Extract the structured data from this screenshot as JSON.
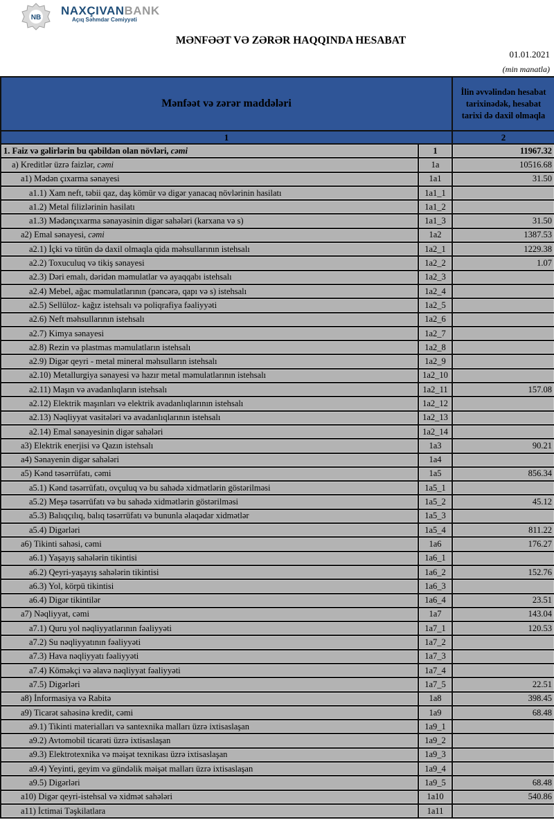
{
  "header": {
    "bank_name_part1": "NAXÇIVAN",
    "bank_name_part2": "BANK",
    "bank_subtitle": "Açıq Səhmdar Cəmiyyəti",
    "logo_text": "NB",
    "title": "MƏNFƏƏT VƏ ZƏRƏR HAQQINDA HESABAT",
    "date": "01.01.2021",
    "unit": "(min manatla)"
  },
  "colors": {
    "header_bg": "#2f5597",
    "row_bg": "#b3b3b3",
    "brand": "#1f4e79"
  },
  "table": {
    "col1_header": "Mənfəət və zərər maddələri",
    "col3_header": "İlin əvvəlindən hesabat tarixinədək, hesabat tarixi də daxil olmaqla",
    "col1_num": "1",
    "col3_num": "2",
    "rows": [
      {
        "level": 0,
        "bold": true,
        "label": "1. Faiz və gəlirlərin bu qəbildən olan növləri, ",
        "italic": "cəmi",
        "code": "1",
        "value": "11967.32"
      },
      {
        "level": 1,
        "label": "a) Kreditlər üzrə faizlər, ",
        "italic": "cəmi",
        "code": "1a",
        "value": "10516.68"
      },
      {
        "level": 2,
        "label": "a1) Mədən çıxarma sənayesi",
        "code": "1a1",
        "value": "31.50"
      },
      {
        "level": 3,
        "label": "a1.1) Xam neft, təbii qaz, daş kömür və digər yanacaq növlərinin hasilatı",
        "code": "1a1_1",
        "value": ""
      },
      {
        "level": 3,
        "label": "a1.2) Metal filizlərinin hasilatı",
        "code": "1a1_2",
        "value": ""
      },
      {
        "level": 3,
        "label": "a1.3) Mədənçıxarma sənayəsinin digər sahələri (karxana və s)",
        "code": "1a1_3",
        "value": "31.50"
      },
      {
        "level": 2,
        "label": "a2) Emal sənayesi, ",
        "italic": "cəmi",
        "code": "1a2",
        "value": "1387.53"
      },
      {
        "level": 3,
        "label": "a2.1) İçki və tütün də daxil olmaqla qida məhsullarının istehsalı",
        "code": "1a2_1",
        "value": "1229.38"
      },
      {
        "level": 3,
        "label": "a2.2) Toxuculuq və tikiş sənayesi",
        "code": "1a2_2",
        "value": "1.07"
      },
      {
        "level": 3,
        "label": "a2.3) Dəri emalı, dəridən məmulatlar və ayaqqabı istehsalı",
        "code": "1a2_3",
        "value": ""
      },
      {
        "level": 3,
        "label": "a2.4) Mebel, ağac məmulatlarının (pəncərə, qapı və s) istehsalı",
        "code": "1a2_4",
        "value": ""
      },
      {
        "level": 3,
        "label": "a2.5) Sellüloz- kağız istehsalı və poliqrafiya fəaliyyəti",
        "code": "1a2_5",
        "value": ""
      },
      {
        "level": 3,
        "label": "a2.6) Neft məhsullarının istehsalı",
        "code": "1a2_6",
        "value": ""
      },
      {
        "level": 3,
        "label": "a2.7) Kimya sənayesi",
        "code": "1a2_7",
        "value": ""
      },
      {
        "level": 3,
        "label": "a2.8) Rezin və plastmas məmulatların istehsalı",
        "code": "1a2_8",
        "value": ""
      },
      {
        "level": 3,
        "label": "a2.9) Digər qeyri - metal mineral məhsulların istehsalı",
        "code": "1a2_9",
        "value": ""
      },
      {
        "level": 3,
        "label": "a2.10) Metallurgiya sənayesi və hazır metal məmulatlarının istehsalı",
        "code": "1a2_10",
        "value": ""
      },
      {
        "level": 3,
        "label": "a2.11) Maşın və avadanlıqların istehsalı",
        "code": "1a2_11",
        "value": "157.08"
      },
      {
        "level": 3,
        "label": "a2.12) Elektrik maşınları və elektrik avadanlıqlarının istehsalı",
        "code": "1a2_12",
        "value": ""
      },
      {
        "level": 3,
        "label": "a2.13) Nəqliyyat vasitələri və avadanlıqlarının istehsalı",
        "code": "1a2_13",
        "value": ""
      },
      {
        "level": 3,
        "label": "a2.14) Emal sənayesinin digər sahələri",
        "code": "1a2_14",
        "value": ""
      },
      {
        "level": 2,
        "label": "a3) Elektrik enerjisi və Qazın istehsalı",
        "code": "1a3",
        "value": "90.21"
      },
      {
        "level": 2,
        "label": "a4) Sənayenin digər sahələri",
        "code": "1a4",
        "value": ""
      },
      {
        "level": 2,
        "label": "a5) Kənd təsərrüfatı, cəmi",
        "code": "1a5",
        "value": "856.34"
      },
      {
        "level": 3,
        "label": "a5.1) Kənd təsərrüfatı, ovçuluq və bu sahədə xidmətlərin göstərilməsi",
        "code": "1a5_1",
        "value": ""
      },
      {
        "level": 3,
        "label": "a5.2) Meşə təsərrüfatı və bu sahədə xidmətlərin göstərilməsi",
        "code": "1a5_2",
        "value": "45.12"
      },
      {
        "level": 3,
        "label": "a5.3) Balıqçılıq, balıq təsərrüfatı və bununla əlaqədar xidmətlər",
        "code": "1a5_3",
        "value": ""
      },
      {
        "level": 3,
        "label": "a5.4) Digərləri",
        "code": "1a5_4",
        "value": "811.22"
      },
      {
        "level": 2,
        "label": "a6) Tikinti sahəsi, cəmi",
        "code": "1a6",
        "value": "176.27"
      },
      {
        "level": 3,
        "label": "a6.1) Yaşayış sahələrin tikintisi",
        "code": "1a6_1",
        "value": ""
      },
      {
        "level": 3,
        "label": "a6.2) Qeyri-yaşayış sahələrin tikintisi",
        "code": "1a6_2",
        "value": "152.76"
      },
      {
        "level": 3,
        "label": "a6.3) Yol, körpü tikintisi",
        "code": "1a6_3",
        "value": ""
      },
      {
        "level": 3,
        "label": "a6.4) Digər tikintilər",
        "code": "1a6_4",
        "value": "23.51"
      },
      {
        "level": 2,
        "label": "a7) Nəqliyyat, cəmi",
        "code": "1a7",
        "value": "143.04"
      },
      {
        "level": 3,
        "label": "a7.1) Quru yol nəqliyyatlarının fəaliyyəti",
        "code": "1a7_1",
        "value": "120.53"
      },
      {
        "level": 3,
        "label": "a7.2) Su nəqliyyatının fəaliyyəti",
        "code": "1a7_2",
        "value": ""
      },
      {
        "level": 3,
        "label": "a7.3) Hava nəqliyyatı fəaliyyəti",
        "code": "1a7_3",
        "value": ""
      },
      {
        "level": 3,
        "label": "a7.4) Köməkçi və əlavə nəqliyyat fəaliyyəti",
        "code": "1a7_4",
        "value": ""
      },
      {
        "level": 3,
        "label": "a7.5) Digərləri",
        "code": "1a7_5",
        "value": "22.51"
      },
      {
        "level": 2,
        "label": "a8)  İnformasiya və Rabitə",
        "code": "1a8",
        "value": "398.45"
      },
      {
        "level": 2,
        "label": "a9) Ticarət sahəsinə kredit, cəmi",
        "code": "1a9",
        "value": "68.48"
      },
      {
        "level": 3,
        "label": "a9.1) Tikinti materialları və santexnika malları üzrə ixtisaslaşan",
        "code": "1a9_1",
        "value": ""
      },
      {
        "level": 3,
        "label": "a9.2) Avtomobil ticarəti üzrə ixtisaslaşan",
        "code": "1a9_2",
        "value": ""
      },
      {
        "level": 3,
        "label": "a9.3) Elektrotexnika və məişət texnikası üzrə ixtisaslaşan",
        "code": "1a9_3",
        "value": ""
      },
      {
        "level": 3,
        "label": "a9.4) Yeyinti, geyim və gündəlik məişət malları üzrə ixtisaslaşan",
        "code": "1a9_4",
        "value": ""
      },
      {
        "level": 3,
        "label": "a9.5) Digərləri",
        "code": "1a9_5",
        "value": "68.48"
      },
      {
        "level": 2,
        "label": "a10) Digər qeyri-istehsal və xidmət sahələri",
        "code": "1a10",
        "value": "540.86"
      },
      {
        "level": 2,
        "label": "a11) İctimai Təşkilatlara",
        "code": "1a11",
        "value": ""
      }
    ]
  }
}
